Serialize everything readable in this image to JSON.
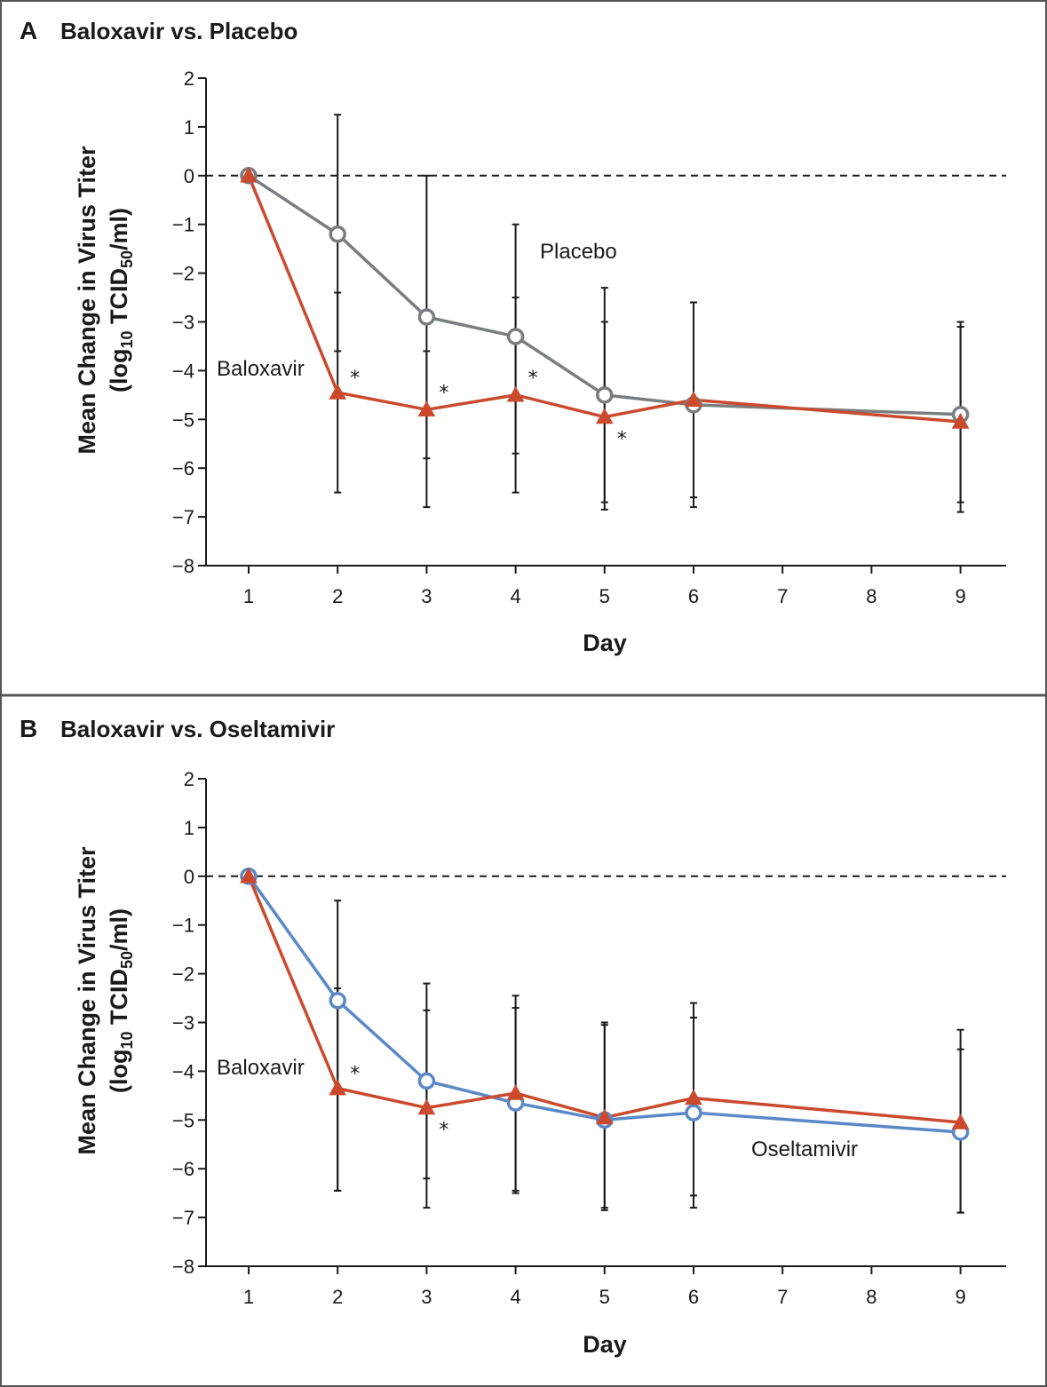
{
  "chart_data": [
    {
      "type": "line",
      "panel": "A",
      "title": "Baloxavir vs. Placebo",
      "xlabel": "Day",
      "ylabel_line1": "Mean Change in Virus Titer",
      "ylabel_line2": "(log10 TCID50/ml)",
      "ylabel_parts": {
        "open": "(log",
        "sub1": "10",
        "mid": " TCID",
        "sub2": "50",
        "close": "/ml)"
      },
      "categories": [
        "1",
        "2",
        "3",
        "4",
        "5",
        "6",
        "7",
        "8",
        "9"
      ],
      "yticks": [
        "2",
        "1",
        "0",
        "−1",
        "−2",
        "−3",
        "−4",
        "−5",
        "−6",
        "−7",
        "−8"
      ],
      "ylim": [
        -8,
        2
      ],
      "reference_line_y": 0,
      "series": [
        {
          "name": "Placebo",
          "label": "Placebo",
          "marker": "open-circle",
          "color": "#7a7d80",
          "x": [
            1,
            2,
            3,
            4,
            5,
            6,
            9
          ],
          "values": [
            0,
            -1.2,
            -2.9,
            -3.3,
            -4.5,
            -4.7,
            -4.9
          ],
          "error_low": [
            0,
            -3.6,
            -5.8,
            -5.7,
            -6.7,
            -6.6,
            -6.7
          ],
          "error_high": [
            0,
            1.25,
            0.0,
            -1.0,
            -2.3,
            -2.6,
            -3.1
          ]
        },
        {
          "name": "Baloxavir",
          "label": "Baloxavir",
          "marker": "filled-triangle",
          "color": "#cb4a2e",
          "x": [
            1,
            2,
            3,
            4,
            5,
            6,
            9
          ],
          "values": [
            0,
            -4.45,
            -4.8,
            -4.5,
            -4.95,
            -4.6,
            -5.05
          ],
          "error_low": [
            0,
            -6.5,
            -6.8,
            -6.5,
            -6.85,
            -6.8,
            -6.9
          ],
          "error_high": [
            0,
            -2.4,
            -3.6,
            -2.5,
            -3.0,
            -2.6,
            -3.0
          ]
        }
      ],
      "significance_markers": [
        {
          "text": "*",
          "x": 2,
          "y": -4.1
        },
        {
          "text": "*",
          "x": 3,
          "y": -4.4
        },
        {
          "text": "*",
          "x": 4,
          "y": -4.1
        },
        {
          "text": "*",
          "x": 5,
          "y": -5.35
        }
      ]
    },
    {
      "type": "line",
      "panel": "B",
      "title": "Baloxavir vs. Oseltamivir",
      "xlabel": "Day",
      "ylabel_line1": "Mean Change in Virus Titer",
      "ylabel_line2": "(log10 TCID50/ml)",
      "ylabel_parts": {
        "open": "(log",
        "sub1": "10",
        "mid": " TCID",
        "sub2": "50",
        "close": "/ml)"
      },
      "categories": [
        "1",
        "2",
        "3",
        "4",
        "5",
        "6",
        "7",
        "8",
        "9"
      ],
      "yticks": [
        "2",
        "1",
        "0",
        "−1",
        "−2",
        "−3",
        "−4",
        "−5",
        "−6",
        "−7",
        "−8"
      ],
      "ylim": [
        -8,
        2
      ],
      "reference_line_y": 0,
      "series": [
        {
          "name": "Oseltamivir",
          "label": "Oseltamivir",
          "marker": "open-circle",
          "color": "#5b88c6",
          "x": [
            1,
            2,
            3,
            4,
            5,
            6,
            9
          ],
          "values": [
            0,
            -2.55,
            -4.2,
            -4.65,
            -5.0,
            -4.85,
            -5.25
          ],
          "error_low": [
            0,
            -6.45,
            -6.8,
            -6.5,
            -6.8,
            -6.8,
            -6.9
          ],
          "error_high": [
            0,
            -0.5,
            -2.2,
            -2.45,
            -3.0,
            -2.6,
            -3.15
          ]
        },
        {
          "name": "Baloxavir",
          "label": "Baloxavir",
          "marker": "filled-triangle",
          "color": "#cb4a2e",
          "x": [
            1,
            2,
            3,
            4,
            5,
            6,
            9
          ],
          "values": [
            0,
            -4.35,
            -4.75,
            -4.45,
            -4.95,
            -4.55,
            -5.05
          ],
          "error_low": [
            0,
            -6.45,
            -6.2,
            -6.45,
            -6.85,
            -6.55,
            -6.9
          ],
          "error_high": [
            0,
            -2.3,
            -2.75,
            -2.7,
            -3.05,
            -2.9,
            -3.55
          ]
        }
      ],
      "significance_markers": [
        {
          "text": "*",
          "x": 2,
          "y": -4.0
        },
        {
          "text": "*",
          "x": 3,
          "y": -5.15
        }
      ]
    }
  ]
}
